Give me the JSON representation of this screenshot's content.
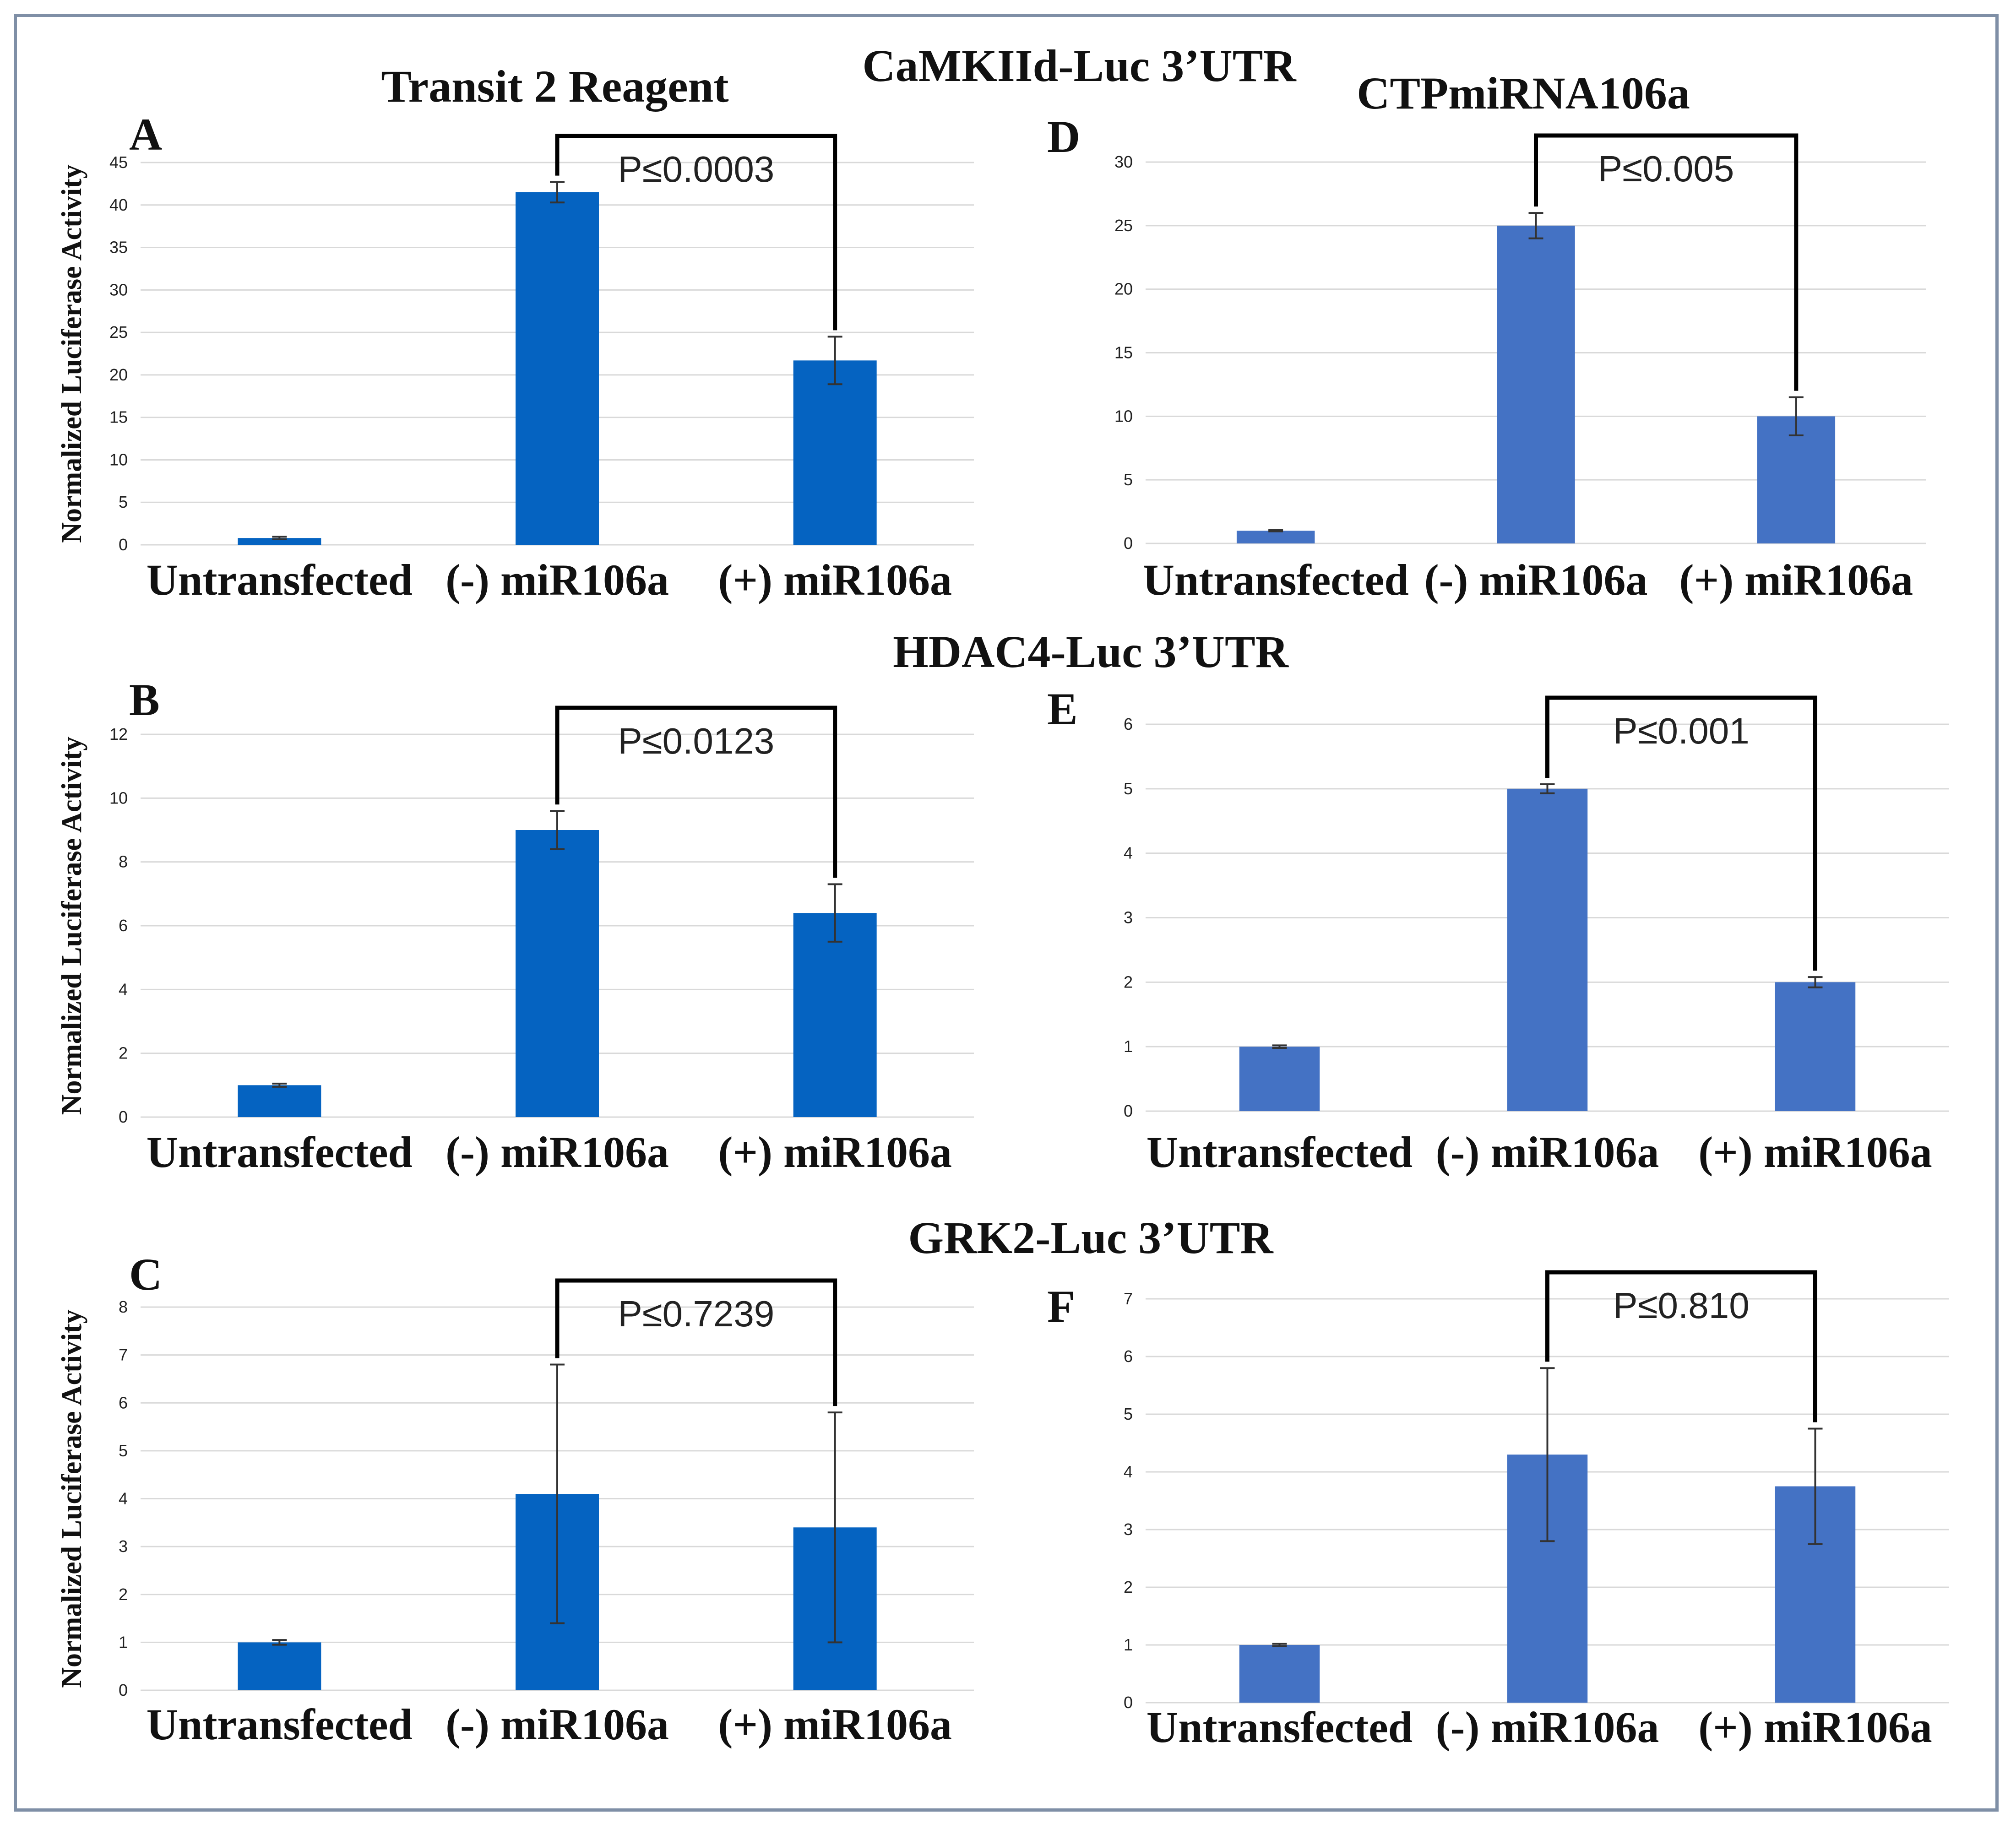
{
  "figure": {
    "headers": {
      "camkii": "CaMKIId-Luc 3’UTR",
      "hdac4": "HDAC4-Luc 3’UTR",
      "grk2": "GRK2-Luc 3’UTR",
      "transit": "Transit 2 Reagent",
      "ctp": "CTPmiRNA106a"
    },
    "y_label": "Normalized Luciferase Activity",
    "colors": {
      "left_bars": "#0563c1",
      "right_bars": "#4472c4",
      "grid": "#d9d9d9",
      "bracket": "#000000"
    }
  },
  "chart_data": [
    {
      "panel": "A",
      "type": "bar",
      "categories": [
        "Untransfected",
        "(-) miR106a",
        "(+) miR106a"
      ],
      "values": [
        0.8,
        41.5,
        21.7
      ],
      "error": [
        0.15,
        1.2,
        2.8
      ],
      "ylim": [
        0,
        45
      ],
      "yticks": [
        "0",
        "5",
        "10",
        "15",
        "20",
        "25",
        "30",
        "35",
        "40",
        "45"
      ],
      "ylabel": "Normalized Luciferase Activity",
      "pvalue": "P≤0.0003"
    },
    {
      "panel": "B",
      "type": "bar",
      "categories": [
        "Untransfected",
        "(-) miR106a",
        "(+) miR106a"
      ],
      "values": [
        1.0,
        9.0,
        6.4
      ],
      "error": [
        0.05,
        0.6,
        0.9
      ],
      "ylim": [
        0,
        12
      ],
      "yticks": [
        "0",
        "2",
        "4",
        "6",
        "8",
        "10",
        "12"
      ],
      "ylabel": "Normalized Luciferase Activity",
      "pvalue": "P≤0.0123"
    },
    {
      "panel": "C",
      "type": "bar",
      "categories": [
        "Untransfected",
        "(-) miR106a",
        "(+) miR106a"
      ],
      "values": [
        1.0,
        4.1,
        3.4
      ],
      "error": [
        0.05,
        2.7,
        2.4
      ],
      "ylim": [
        0,
        8
      ],
      "yticks": [
        "0",
        "1",
        "2",
        "3",
        "4",
        "5",
        "6",
        "7",
        "8"
      ],
      "ylabel": "Normalized Luciferase Activity",
      "pvalue": "P≤0.7239"
    },
    {
      "panel": "D",
      "type": "bar",
      "categories": [
        "Untransfected",
        "(-) miR106a",
        "(+) miR106a"
      ],
      "values": [
        1.0,
        25.0,
        10.0
      ],
      "error": [
        0.05,
        1.0,
        1.5
      ],
      "ylim": [
        0,
        30
      ],
      "yticks": [
        "0",
        "5",
        "10",
        "15",
        "20",
        "25",
        "30"
      ],
      "pvalue": "P≤0.005"
    },
    {
      "panel": "E",
      "type": "bar",
      "categories": [
        "Untransfected",
        "(-) miR106a",
        "(+) miR106a"
      ],
      "values": [
        1.0,
        5.0,
        2.0
      ],
      "error": [
        0.02,
        0.07,
        0.08
      ],
      "ylim": [
        0,
        6
      ],
      "yticks": [
        "0",
        "1",
        "2",
        "3",
        "4",
        "5",
        "6"
      ],
      "pvalue": "P≤0.001"
    },
    {
      "panel": "F",
      "type": "bar",
      "categories": [
        "Untransfected",
        "(-) miR106a",
        "(+) miR106a"
      ],
      "values": [
        1.0,
        4.3,
        3.75
      ],
      "error": [
        0.02,
        1.5,
        1.0
      ],
      "ylim": [
        0,
        7
      ],
      "yticks": [
        "0",
        "1",
        "2",
        "3",
        "4",
        "5",
        "6",
        "7"
      ],
      "pvalue": "P≤0.810"
    }
  ]
}
